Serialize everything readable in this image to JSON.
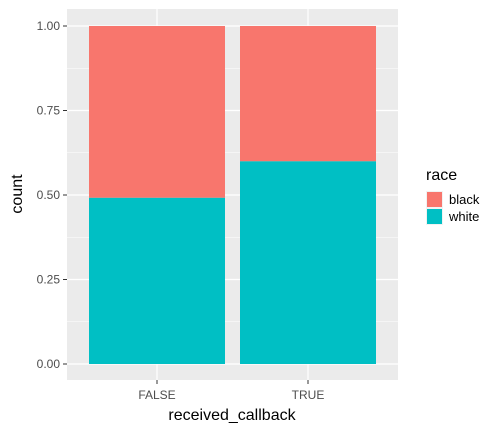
{
  "chart_data": {
    "type": "bar",
    "stacked": true,
    "position": "fill",
    "categories": [
      "FALSE",
      "TRUE"
    ],
    "series": [
      {
        "name": "black",
        "values": [
          0.508,
          0.4
        ],
        "color": "#F8766D"
      },
      {
        "name": "white",
        "values": [
          0.492,
          0.6
        ],
        "color": "#00BFC4"
      }
    ],
    "xlabel": "received_callback",
    "ylabel": "count",
    "ylim": [
      0,
      1
    ],
    "yticks": [
      "0.00",
      "0.25",
      "0.50",
      "0.75",
      "1.00"
    ],
    "ytick_values": [
      0,
      0.25,
      0.5,
      0.75,
      1
    ],
    "legend": {
      "title": "race",
      "placement": "right",
      "items": [
        "black",
        "white"
      ]
    },
    "grid": true,
    "panel_background": "#EBEBEB"
  }
}
